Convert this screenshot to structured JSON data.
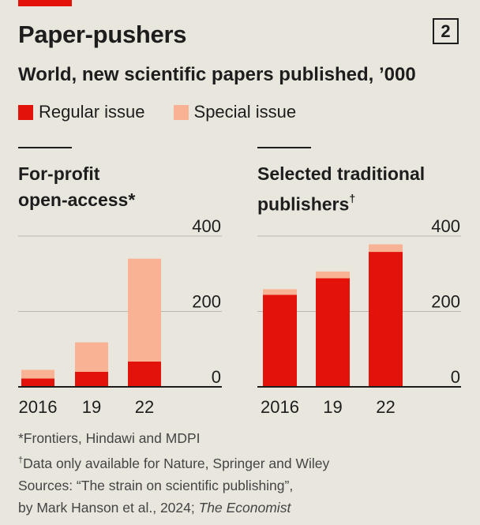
{
  "title": "Paper-pushers",
  "badge": "2",
  "subtitle": "World, new scientific papers published, ’000",
  "colors": {
    "regular": "#e3120b",
    "special": "#f9b294",
    "accent": "#e3120b",
    "grid": "#b8b8b0",
    "axis": "#1d1d1d"
  },
  "legend": [
    {
      "label": "Regular issue",
      "color": "#e3120b"
    },
    {
      "label": "Special issue",
      "color": "#f9b294"
    }
  ],
  "panels": [
    {
      "title_line1": "For-profit",
      "title_line2": "open-access",
      "title_mark": "*"
    },
    {
      "title_line1": "Selected traditional",
      "title_line2": "publishers",
      "title_mark": "†"
    }
  ],
  "chart_data": [
    {
      "type": "bar",
      "stacked": true,
      "title": "For-profit open-access*",
      "categories": [
        "2016",
        "19",
        "22"
      ],
      "series": [
        {
          "name": "Regular issue",
          "values": [
            22,
            40,
            67
          ]
        },
        {
          "name": "Special issue",
          "values": [
            23,
            78,
            273
          ]
        }
      ],
      "yticks": [
        "400",
        "200",
        "0"
      ],
      "ylim": [
        0,
        400
      ]
    },
    {
      "type": "bar",
      "stacked": true,
      "title": "Selected traditional publishers†",
      "categories": [
        "2016",
        "19",
        "22"
      ],
      "series": [
        {
          "name": "Regular issue",
          "values": [
            244,
            288,
            358
          ]
        },
        {
          "name": "Special issue",
          "values": [
            15,
            18,
            20
          ]
        }
      ],
      "yticks": [
        "400",
        "200",
        "0"
      ],
      "ylim": [
        0,
        400
      ]
    }
  ],
  "footnotes": {
    "line1": "*Frontiers, Hindawi and MDPI",
    "line2_mark": "†",
    "line2": "Data only available for Nature, Springer and Wiley",
    "line3": "Sources: “The strain on scientific publishing”,",
    "line4": "by Mark Hanson et al., 2024; ",
    "line4_italic": "The Economist"
  }
}
